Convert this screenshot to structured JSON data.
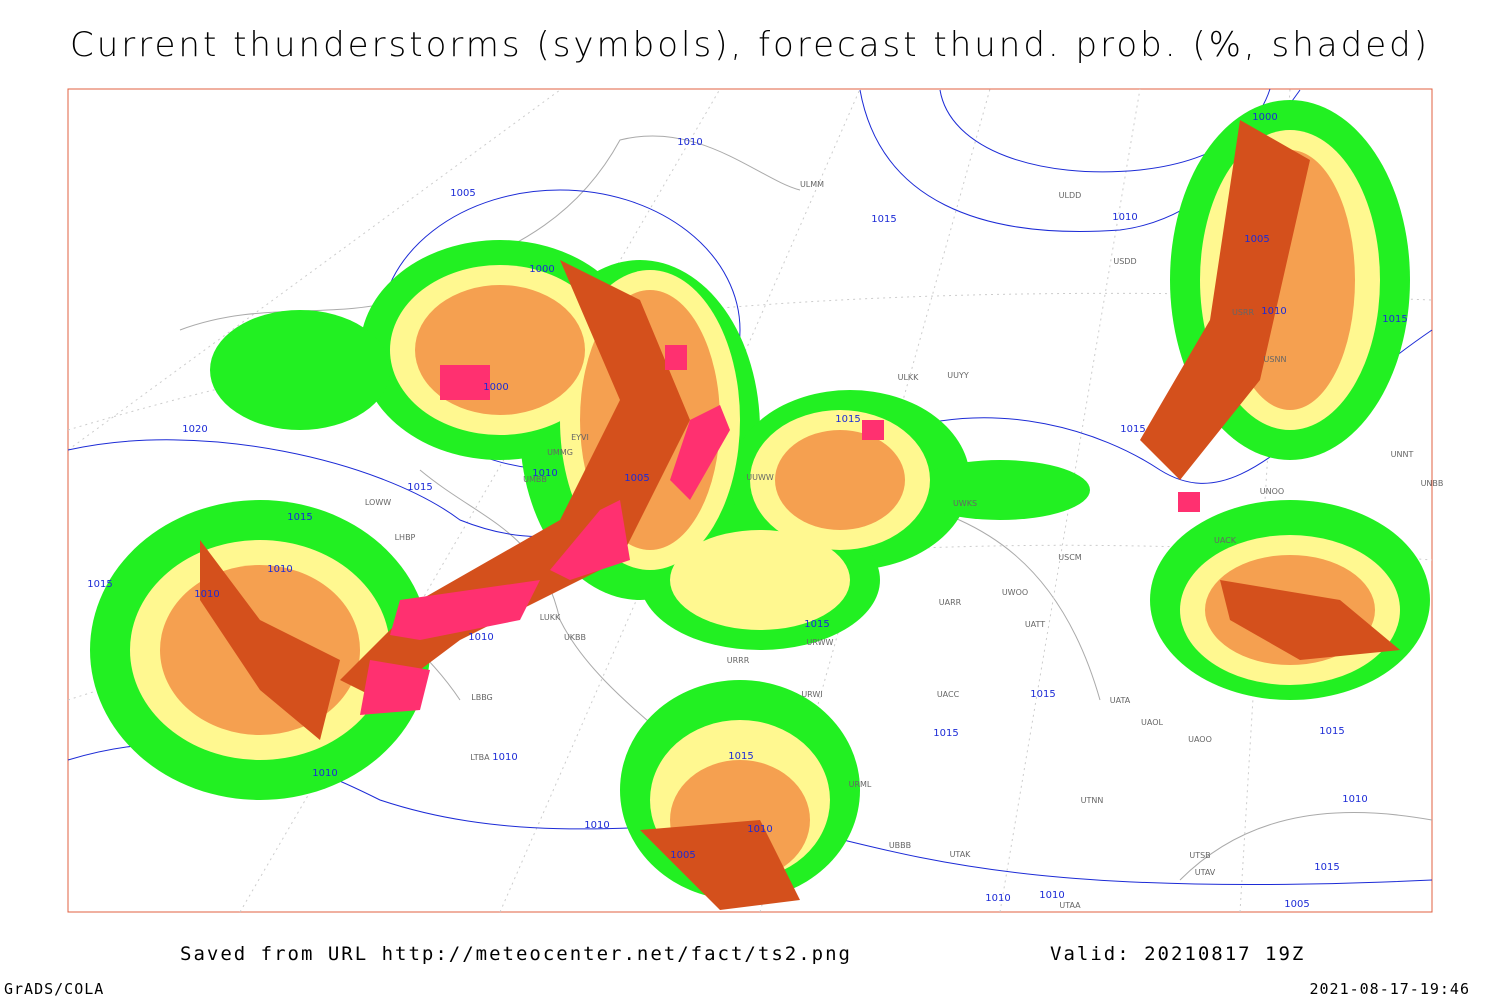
{
  "header": {
    "title": "Current thunderstorms (symbols), forecast thund. prob. (%, shaded)"
  },
  "map": {
    "isobar_labels": [
      1010,
      1005,
      1000,
      1000,
      1015,
      1010,
      1000,
      1005,
      1010,
      1015,
      1020,
      1015,
      1015,
      1010,
      1005,
      1015,
      1010,
      1010,
      1010,
      1015,
      1015,
      1015,
      1015,
      1015,
      1015,
      1010,
      1010,
      1010,
      1010,
      1005,
      1015,
      1010,
      1015,
      1010,
      1010,
      1005
    ],
    "stations": [
      "ULMM",
      "ULDD",
      "USDD",
      "UUYY",
      "ULKK",
      "UUWW",
      "UMMG",
      "UMBB",
      "EYVI",
      "LOWW",
      "LHBP",
      "LUKK",
      "UKBB",
      "URRR",
      "LBBG",
      "URWI",
      "UACC",
      "UATA",
      "UAOL",
      "UAOO",
      "UTNN",
      "UNOO",
      "UACK",
      "UNNT",
      "UNBB",
      "UWOO",
      "UWKS",
      "UATT",
      "UARR",
      "URWW",
      "USCM",
      "UTAK",
      "UTAA",
      "USNN",
      "USRR",
      "LTBA",
      "UTSB",
      "UTAV",
      "URML",
      "UBBB"
    ]
  },
  "footer": {
    "source": "Saved from URL http://meteocenter.net/fact/ts2.png",
    "valid": "Valid: 20210817 19Z",
    "software": "GrADS/COLA",
    "timestamp": "2021-08-17-19:46"
  }
}
